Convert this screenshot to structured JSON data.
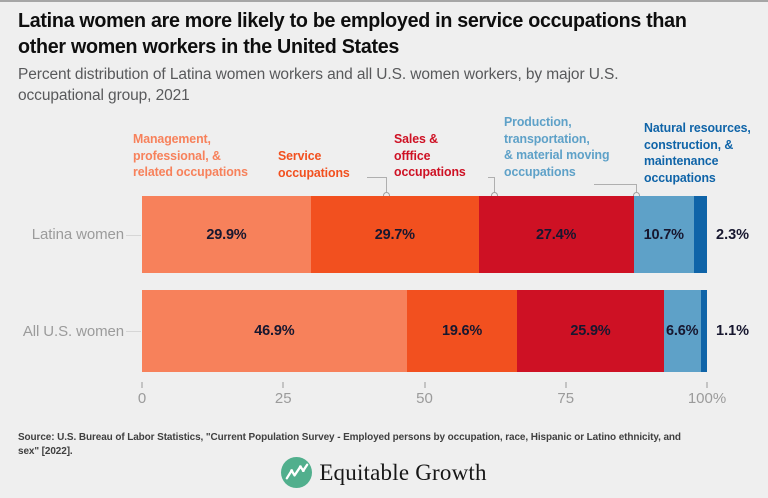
{
  "title": "Latina women are more likely to be employed in service occupations than\nother women workers in the United States",
  "subtitle": "Percent distribution of Latina women workers and all U.S. women workers, by major U.S.\noccupational group, 2021",
  "legend": [
    {
      "label": "Management,\nprofessional, &\nrelated occupations",
      "color": "#F7815B"
    },
    {
      "label": "Service\noccupations",
      "color": "#F2501F"
    },
    {
      "label": "Sales &\nofffice\noccupations",
      "color": "#CE1124"
    },
    {
      "label": "Production,\ntransportation,\n& material moving\noccupations",
      "color": "#5EA1C8"
    },
    {
      "label": "Natural resources,\nconstruction, &\nmaintenance\noccupations",
      "color": "#0F64A8"
    }
  ],
  "chart_data": {
    "type": "bar",
    "orientation": "horizontal",
    "stacked": true,
    "unit": "percent",
    "categories": [
      "Latina women",
      "All U.S. women"
    ],
    "series": [
      {
        "name": "Management, professional, & related occupations",
        "color": "#F7815B",
        "values": [
          29.9,
          46.9
        ]
      },
      {
        "name": "Service occupations",
        "color": "#F2501F",
        "values": [
          29.7,
          19.6
        ]
      },
      {
        "name": "Sales & offfice occupations",
        "color": "#CE1124",
        "values": [
          27.4,
          25.9
        ]
      },
      {
        "name": "Production, transportation, & material moving occupations",
        "color": "#5EA1C8",
        "values": [
          10.7,
          6.6
        ]
      },
      {
        "name": "Natural resources, construction, & maintenance occupations",
        "color": "#0F64A8",
        "values": [
          2.3,
          1.1
        ]
      }
    ],
    "value_label_suffix": "%",
    "xlim": [
      0,
      100
    ],
    "x_tick_values": [
      0,
      25,
      50,
      75,
      100
    ],
    "x_tick_labels": [
      "0",
      "25",
      "50",
      "75",
      "100%"
    ],
    "grid": false,
    "legend_position": "top"
  },
  "source": "Source: U.S. Bureau of Labor Statistics, \"Current Population Survey - Employed persons by occupation, race, Hispanic or Latino ethnicity, and\nsex\" [2022].",
  "logo": {
    "text": "Equitable Growth",
    "icon": "trend-line-circle-icon",
    "color": "#51AF8D"
  },
  "colors": {
    "background": "#EFEFEF",
    "title": "#0E0E0E",
    "subtitle": "#58595B",
    "row_and_axis_labels": "#9B9B9B",
    "bar_value_labels": "#17172F",
    "source_text": "#404040",
    "logo_green": "#51AF8D"
  }
}
